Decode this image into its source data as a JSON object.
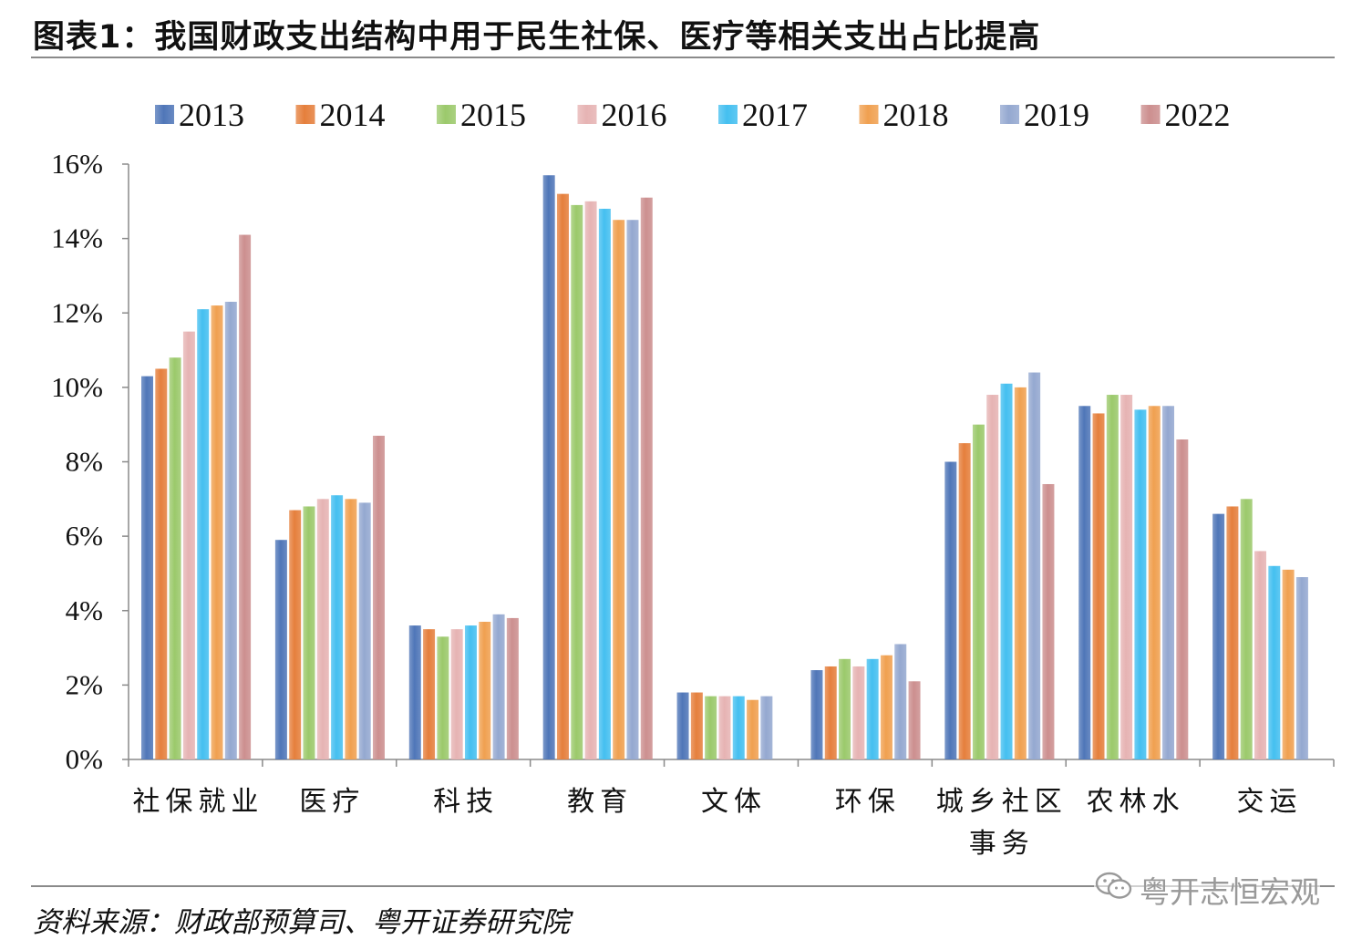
{
  "title": "图表1：我国财政支出结构中用于民生社保、医疗等相关支出占比提高",
  "source": "资料来源：财政部预算司、粤开证券研究院",
  "watermark": "粤开志恒宏观",
  "icons": {
    "watermark": "wechat-icon"
  },
  "chart_data": {
    "type": "bar",
    "title": "",
    "xlabel": "",
    "ylabel": "",
    "ylim": [
      0,
      16
    ],
    "yticks": [
      "0%",
      "2%",
      "4%",
      "6%",
      "8%",
      "10%",
      "12%",
      "14%",
      "16%"
    ],
    "grid": false,
    "legend_position": "top",
    "categories": [
      "社保就业",
      "医疗",
      "科技",
      "教育",
      "文体",
      "环保",
      "城乡社区事务",
      "农林水",
      "交运"
    ],
    "series": [
      {
        "name": "2013",
        "color": "#4f76b8",
        "values": [
          10.3,
          5.9,
          3.6,
          15.7,
          1.8,
          2.4,
          8.0,
          9.5,
          6.6
        ]
      },
      {
        "name": "2014",
        "color": "#e57f3c",
        "values": [
          10.5,
          6.7,
          3.5,
          15.2,
          1.8,
          2.5,
          8.5,
          9.3,
          6.8
        ]
      },
      {
        "name": "2015",
        "color": "#9bc96b",
        "values": [
          10.8,
          6.8,
          3.3,
          14.9,
          1.7,
          2.7,
          9.0,
          9.8,
          7.0
        ]
      },
      {
        "name": "2016",
        "color": "#e6b3b3",
        "values": [
          11.5,
          7.0,
          3.5,
          15.0,
          1.7,
          2.5,
          9.8,
          9.8,
          5.6
        ]
      },
      {
        "name": "2017",
        "color": "#44bff0",
        "values": [
          12.1,
          7.1,
          3.6,
          14.8,
          1.7,
          2.7,
          10.1,
          9.4,
          5.2
        ]
      },
      {
        "name": "2018",
        "color": "#f0a050",
        "values": [
          12.2,
          7.0,
          3.7,
          14.5,
          1.6,
          2.8,
          10.0,
          9.5,
          5.1
        ]
      },
      {
        "name": "2019",
        "color": "#94a8d0",
        "values": [
          12.3,
          6.9,
          3.9,
          14.5,
          1.7,
          3.1,
          10.4,
          9.5,
          4.9
        ]
      },
      {
        "name": "2022",
        "color": "#cc8f8f",
        "values": [
          14.1,
          8.7,
          3.8,
          15.1,
          null,
          2.1,
          7.4,
          8.6,
          null
        ]
      }
    ]
  }
}
